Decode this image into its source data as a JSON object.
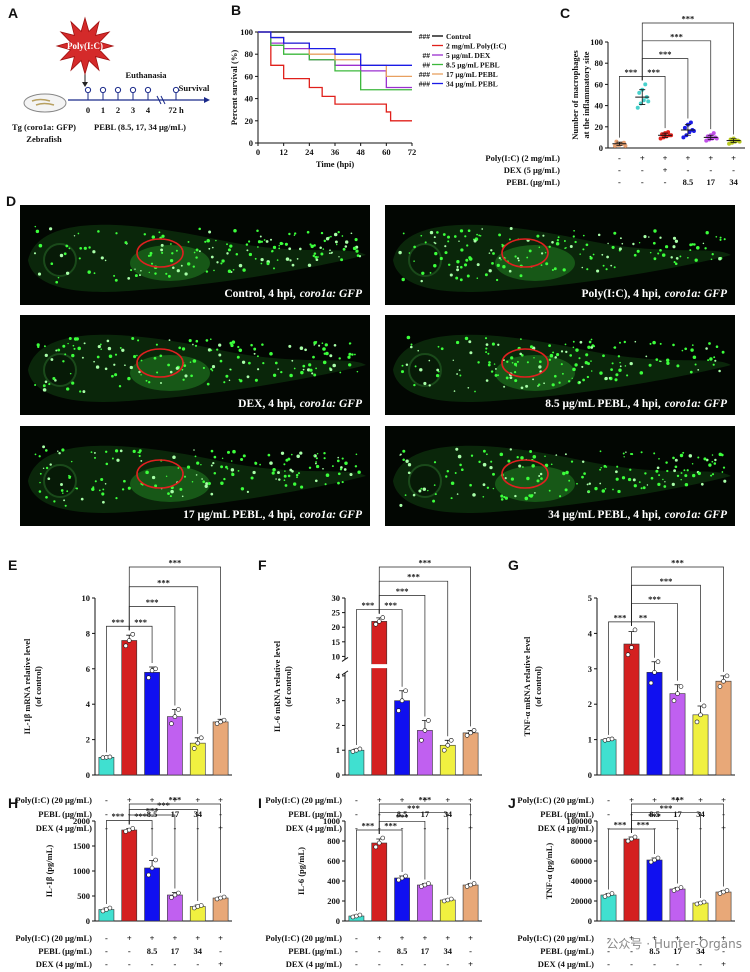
{
  "panel_a": {
    "label": "A",
    "stimulus": "Poly(I:C)",
    "endpoint": "Euthanasia",
    "outcome": "Survival",
    "timepoints": [
      "0",
      "1",
      "2",
      "3",
      "4",
      "72 h"
    ],
    "strain": "Tg (coro1a: GFP)",
    "organism": "Zebrafish",
    "treatment": "PEBL (8.5, 17, 34 μg/mL)"
  },
  "panel_d": {
    "label": "D",
    "images": [
      {
        "condition": "Control, 4 hpi,",
        "reporter": "coro1a: GFP"
      },
      {
        "condition": "Poly(I:C), 4 hpi,",
        "reporter": "coro1a: GFP"
      },
      {
        "condition": "DEX, 4 hpi,",
        "reporter": "coro1a: GFP"
      },
      {
        "condition": "8.5 μg/mL PEBL, 4 hpi,",
        "reporter": "coro1a: GFP"
      },
      {
        "condition": "17 μg/mL PEBL, 4 hpi,",
        "reporter": "coro1a: GFP"
      },
      {
        "condition": "34 μg/mL PEBL, 4 hpi,",
        "reporter": "coro1a: GFP"
      }
    ]
  },
  "watermark": "公众号 · Hunter-Organs",
  "chart_data": [
    {
      "label": "B",
      "type": "line",
      "step": true,
      "ylabel": [
        "Percent survival (%)"
      ],
      "xlabel": "Time (hpi)",
      "xlim": [
        0,
        72
      ],
      "xticks": [
        0,
        12,
        24,
        36,
        48,
        60,
        72
      ],
      "ylim": [
        0,
        100
      ],
      "yticks": [
        0,
        20,
        40,
        60,
        80,
        100
      ],
      "series": [
        {
          "name": "Control",
          "significance": "###",
          "color": "#000000",
          "x": [
            0,
            72
          ],
          "values": [
            100,
            100
          ]
        },
        {
          "name": "2 mg/mL Poly(I:C)",
          "color": "#e0201b",
          "x": [
            0,
            6,
            12,
            24,
            30,
            36,
            60,
            62,
            72
          ],
          "values": [
            100,
            70,
            58,
            50,
            42,
            35,
            28,
            20,
            20
          ]
        },
        {
          "name": "5 μg/mL DEX",
          "significance": "##",
          "color": "#9b30d0",
          "x": [
            0,
            6,
            12,
            24,
            36,
            48,
            60,
            72
          ],
          "values": [
            100,
            90,
            85,
            75,
            70,
            65,
            50,
            50
          ]
        },
        {
          "name": "8.5 μg/mL PEBL",
          "significance": "##",
          "color": "#3cb83c",
          "x": [
            0,
            6,
            12,
            24,
            36,
            48,
            72
          ],
          "values": [
            100,
            88,
            80,
            75,
            65,
            48,
            48
          ]
        },
        {
          "name": "17 μg/mL PEBL",
          "significance": "###",
          "color": "#e8a060",
          "x": [
            0,
            6,
            12,
            24,
            36,
            48,
            60,
            72
          ],
          "values": [
            100,
            95,
            90,
            80,
            75,
            70,
            60,
            60
          ]
        },
        {
          "name": "34 μg/mL PEBL",
          "significance": "###",
          "color": "#1a1ae6",
          "x": [
            0,
            6,
            12,
            24,
            36,
            48,
            72
          ],
          "values": [
            100,
            95,
            90,
            85,
            80,
            70,
            70
          ]
        }
      ]
    },
    {
      "label": "C",
      "type": "dot_plot",
      "ylabel": [
        "Number of macrophages",
        "at the inflammatory site"
      ],
      "ylim": [
        0,
        100
      ],
      "yticks": [
        0,
        20,
        40,
        60,
        80,
        100
      ],
      "colors": [
        "#e8a070",
        "#48d1cc",
        "#e0201b",
        "#1a1ae6",
        "#c050e8",
        "#b8c820"
      ],
      "values": [
        4,
        48,
        12,
        17,
        10,
        7
      ],
      "errors": [
        1.5,
        7,
        2,
        5,
        2,
        1.7
      ],
      "points": [
        [
          2,
          3,
          4,
          5,
          6,
          3,
          4,
          2
        ],
        [
          38,
          42,
          45,
          48,
          52,
          55,
          60,
          44
        ],
        [
          9,
          10,
          11,
          12,
          13,
          14,
          15,
          12
        ],
        [
          10,
          12,
          15,
          17,
          19,
          22,
          24,
          16
        ],
        [
          7,
          8,
          9,
          10,
          11,
          12,
          14,
          9
        ],
        [
          4,
          5,
          6,
          7,
          8,
          9,
          7,
          6
        ]
      ],
      "significance": [
        "***",
        null,
        "***",
        "***",
        "***",
        "***"
      ],
      "conditions": [
        {
          "name": "Poly(I:C) (2 mg/mL)",
          "values": [
            "-",
            "+",
            "+",
            "+",
            "+",
            "+"
          ]
        },
        {
          "name": "DEX (5 μg/mL)",
          "values": [
            "-",
            "-",
            "+",
            "-",
            "-",
            "-"
          ]
        },
        {
          "name": "PEBL (μg/mL)",
          "values": [
            "-",
            "-",
            "-",
            "8.5",
            "17",
            "34"
          ]
        }
      ]
    },
    {
      "label": "E",
      "type": "bar",
      "ylabel": [
        "IL-1β mRNA relative level",
        "(of control)"
      ],
      "ylim": [
        0,
        10
      ],
      "yticks": [
        0,
        2,
        4,
        6,
        8,
        10
      ],
      "colors": [
        "#40e0d0",
        "#d42020",
        "#1010f0",
        "#c060f0",
        "#f0f040",
        "#e8a878"
      ],
      "values": [
        1,
        7.6,
        5.8,
        3.3,
        1.8,
        3.0
      ],
      "errors": [
        0.05,
        0.3,
        0.3,
        0.4,
        0.3,
        0.15
      ],
      "points": [
        [
          0.98,
          1.0,
          1.02
        ],
        [
          7.3,
          7.6,
          7.95
        ],
        [
          5.5,
          5.9,
          6.0
        ],
        [
          2.9,
          3.3,
          3.7
        ],
        [
          1.5,
          1.8,
          2.1
        ],
        [
          2.9,
          3.0,
          3.1
        ]
      ],
      "significance": [
        "***",
        null,
        "***",
        "***",
        "***",
        "***"
      ],
      "conditions": [
        {
          "name": "Poly(I:C) (20 μg/mL)",
          "values": [
            "-",
            "+",
            "+",
            "+",
            "+",
            "+"
          ]
        },
        {
          "name": "PEBL (μg/mL)",
          "values": [
            "-",
            "-",
            "8.5",
            "17",
            "34",
            "-"
          ]
        },
        {
          "name": "DEX (4 μg/mL)",
          "values": [
            "-",
            "-",
            "-",
            "-",
            "-",
            "+"
          ]
        }
      ]
    },
    {
      "label": "F",
      "type": "bar",
      "ylabel": [
        "IL-6 mRNA relative level",
        "(of control)"
      ],
      "ylim": [
        0,
        30
      ],
      "axis_break": [
        4,
        10
      ],
      "yticks": [
        0,
        1,
        2,
        3,
        4,
        10,
        15,
        20,
        25,
        30
      ],
      "colors": [
        "#40e0d0",
        "#d42020",
        "#1010f0",
        "#c060f0",
        "#f0f040",
        "#e8a878"
      ],
      "values": [
        1,
        22,
        3,
        1.8,
        1.2,
        1.7
      ],
      "errors": [
        0.05,
        1.2,
        0.4,
        0.4,
        0.2,
        0.1
      ],
      "points": [
        [
          0.95,
          1.0,
          1.05
        ],
        [
          21,
          22,
          23.3
        ],
        [
          2.6,
          3.0,
          3.4
        ],
        [
          1.4,
          1.8,
          2.2
        ],
        [
          1.0,
          1.2,
          1.4
        ],
        [
          1.6,
          1.7,
          1.8
        ]
      ],
      "significance": [
        "***",
        null,
        "***",
        "***",
        "***",
        "***"
      ],
      "conditions": [
        {
          "name": "Poly(I:C) (20 μg/mL)",
          "values": [
            "-",
            "+",
            "+",
            "+",
            "+",
            "+"
          ]
        },
        {
          "name": "PEBL (μg/mL)",
          "values": [
            "-",
            "-",
            "8.5",
            "17",
            "34",
            "-"
          ]
        },
        {
          "name": "DEX (4 μg/mL)",
          "values": [
            "-",
            "-",
            "-",
            "-",
            "-",
            "+"
          ]
        }
      ]
    },
    {
      "label": "G",
      "type": "bar",
      "ylabel": [
        "TNF-α mRNA relative level",
        "(of control)"
      ],
      "ylim": [
        0,
        5
      ],
      "yticks": [
        0,
        1,
        2,
        3,
        4,
        5
      ],
      "colors": [
        "#40e0d0",
        "#d42020",
        "#1010f0",
        "#c060f0",
        "#f0f040",
        "#e8a878"
      ],
      "values": [
        1,
        3.7,
        2.9,
        2.3,
        1.7,
        2.65
      ],
      "errors": [
        0.02,
        0.35,
        0.3,
        0.25,
        0.25,
        0.15
      ],
      "points": [
        [
          0.98,
          1.0,
          1.02
        ],
        [
          3.4,
          3.6,
          4.1
        ],
        [
          2.6,
          2.9,
          3.2
        ],
        [
          2.1,
          2.3,
          2.5
        ],
        [
          1.5,
          1.7,
          1.95
        ],
        [
          2.5,
          2.65,
          2.8
        ]
      ],
      "significance": [
        "***",
        null,
        "**",
        "***",
        "***",
        "***"
      ],
      "conditions": [
        {
          "name": "Poly(I:C) (20 μg/mL)",
          "values": [
            "-",
            "+",
            "+",
            "+",
            "+",
            "+"
          ]
        },
        {
          "name": "PEBL (μg/mL)",
          "values": [
            "-",
            "-",
            "8.5",
            "17",
            "34",
            "-"
          ]
        },
        {
          "name": "DEX (4 μg/mL)",
          "values": [
            "-",
            "-",
            "-",
            "-",
            "-",
            "+"
          ]
        }
      ]
    },
    {
      "label": "H",
      "type": "bar",
      "ylabel": [
        "IL-1β (pg/mL)"
      ],
      "ylim": [
        0,
        2000
      ],
      "yticks": [
        0,
        500,
        1000,
        1500,
        2000
      ],
      "colors": [
        "#40e0d0",
        "#d42020",
        "#1010f0",
        "#c060f0",
        "#f0f040",
        "#e8a878"
      ],
      "values": [
        230,
        1820,
        1060,
        520,
        290,
        460
      ],
      "errors": [
        30,
        30,
        150,
        50,
        30,
        20
      ],
      "points": [
        [
          200,
          230,
          260
        ],
        [
          1790,
          1820,
          1850
        ],
        [
          920,
          1060,
          1220
        ],
        [
          470,
          520,
          560
        ],
        [
          260,
          290,
          310
        ],
        [
          440,
          460,
          480
        ]
      ],
      "significance": [
        "***",
        null,
        "***",
        "***",
        "***",
        "***"
      ],
      "conditions": [
        {
          "name": "Poly(I:C) (20 μg/mL)",
          "values": [
            "-",
            "+",
            "+",
            "+",
            "+",
            "+"
          ]
        },
        {
          "name": "PEBL (μg/mL)",
          "values": [
            "-",
            "-",
            "8.5",
            "17",
            "34",
            "-"
          ]
        },
        {
          "name": "DEX (4 μg/mL)",
          "values": [
            "-",
            "-",
            "-",
            "-",
            "-",
            "+"
          ]
        }
      ]
    },
    {
      "label": "I",
      "type": "bar",
      "ylabel": [
        "IL-6 (pg/mL)"
      ],
      "ylim": [
        0,
        1000
      ],
      "yticks": [
        0,
        200,
        400,
        600,
        800,
        1000
      ],
      "colors": [
        "#40e0d0",
        "#d42020",
        "#1010f0",
        "#c060f0",
        "#f0f040",
        "#e8a878"
      ],
      "values": [
        50,
        780,
        430,
        360,
        210,
        360
      ],
      "errors": [
        10,
        40,
        20,
        15,
        10,
        15
      ],
      "points": [
        [
          40,
          50,
          60
        ],
        [
          740,
          780,
          830
        ],
        [
          410,
          430,
          450
        ],
        [
          345,
          360,
          375
        ],
        [
          200,
          210,
          220
        ],
        [
          345,
          360,
          375
        ]
      ],
      "significance": [
        "***",
        null,
        "***",
        "***",
        "***",
        "***"
      ],
      "conditions": [
        {
          "name": "Poly(I:C) (20 μg/mL)",
          "values": [
            "-",
            "+",
            "+",
            "+",
            "+",
            "+"
          ]
        },
        {
          "name": "PEBL (μg/mL)",
          "values": [
            "-",
            "-",
            "8.5",
            "17",
            "34",
            "-"
          ]
        },
        {
          "name": "DEX (4 μg/mL)",
          "values": [
            "-",
            "-",
            "-",
            "-",
            "-",
            "+"
          ]
        }
      ]
    },
    {
      "label": "J",
      "type": "bar",
      "ylabel": [
        "TNF-α (pg/mL)"
      ],
      "ylim": [
        0,
        100000
      ],
      "yticks": [
        0,
        20000,
        40000,
        60000,
        80000,
        100000
      ],
      "colors": [
        "#40e0d0",
        "#d42020",
        "#1010f0",
        "#c060f0",
        "#f0f040",
        "#e8a878"
      ],
      "values": [
        26000,
        82000,
        61000,
        32000,
        18000,
        29000
      ],
      "errors": [
        1500,
        2000,
        2000,
        1500,
        1000,
        1500
      ],
      "points": [
        [
          24500,
          26000,
          27500
        ],
        [
          80000,
          82000,
          84000
        ],
        [
          59000,
          61000,
          63000
        ],
        [
          30500,
          32000,
          33500
        ],
        [
          17000,
          18000,
          19000
        ],
        [
          27500,
          29000,
          30500
        ]
      ],
      "significance": [
        "***",
        null,
        "***",
        "***",
        "***",
        "***"
      ],
      "conditions": [
        {
          "name": "Poly(I:C) (20 μg/mL)",
          "values": [
            "-",
            "+",
            "+",
            "+",
            "+",
            "+"
          ]
        },
        {
          "name": "PEBL (μg/mL)",
          "values": [
            "-",
            "-",
            "8.5",
            "17",
            "34",
            "-"
          ]
        },
        {
          "name": "DEX (4 μg/mL)",
          "values": [
            "-",
            "-",
            "-",
            "-",
            "-",
            "+"
          ]
        }
      ]
    }
  ]
}
